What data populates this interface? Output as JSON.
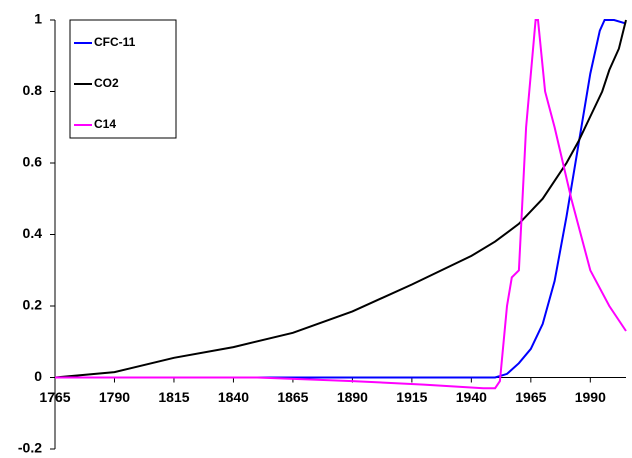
{
  "chart_data": {
    "type": "line",
    "xlim": [
      1765,
      2005
    ],
    "xticks": [
      1765,
      1790,
      1815,
      1840,
      1865,
      1890,
      1915,
      1940,
      1965,
      1990
    ],
    "ylim": [
      -0.2,
      1
    ],
    "yticks": [
      -0.2,
      0,
      0.2,
      0.4,
      0.6,
      0.8,
      1
    ],
    "legend": "upper left",
    "series": [
      {
        "name": "CFC-11",
        "color": "#0000ff",
        "x": [
          1765,
          1850,
          1950,
          1955,
          1960,
          1965,
          1970,
          1975,
          1980,
          1985,
          1990,
          1994,
          1996,
          2000,
          2005
        ],
        "values": [
          0,
          0,
          0,
          0.01,
          0.04,
          0.08,
          0.15,
          0.27,
          0.45,
          0.65,
          0.85,
          0.97,
          1.0,
          1.0,
          0.99
        ]
      },
      {
        "name": "CO2",
        "color": "#000000",
        "x": [
          1765,
          1790,
          1815,
          1840,
          1865,
          1890,
          1915,
          1940,
          1950,
          1960,
          1970,
          1980,
          1985,
          1990,
          1995,
          1998,
          2002,
          2005
        ],
        "values": [
          0,
          0.015,
          0.055,
          0.085,
          0.125,
          0.185,
          0.26,
          0.34,
          0.38,
          0.43,
          0.5,
          0.6,
          0.66,
          0.73,
          0.8,
          0.86,
          0.92,
          1.0
        ]
      },
      {
        "name": "C14",
        "color": "#ff00ff",
        "x": [
          1765,
          1850,
          1890,
          1920,
          1945,
          1950,
          1952,
          1955,
          1957,
          1960,
          1963,
          1967,
          1968,
          1971,
          1975,
          1982,
          1990,
          1998,
          2005
        ],
        "values": [
          0,
          0,
          -0.01,
          -0.02,
          -0.03,
          -0.03,
          -0.01,
          0.2,
          0.28,
          0.3,
          0.7,
          1.0,
          1.0,
          0.8,
          0.7,
          0.5,
          0.3,
          0.2,
          0.13
        ]
      }
    ]
  }
}
